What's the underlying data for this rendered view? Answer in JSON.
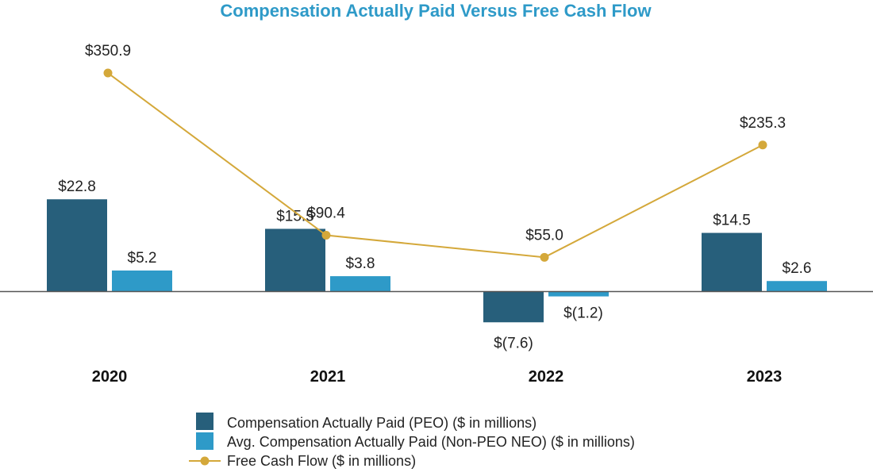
{
  "chart_data": {
    "type": "bar+line",
    "title": "Compensation Actually Paid Versus Free Cash Flow",
    "categories": [
      "2020",
      "2021",
      "2022",
      "2023"
    ],
    "series": [
      {
        "name": "Compensation Actually Paid (PEO) ($ in millions)",
        "kind": "bar",
        "color": "#275f7b",
        "values": [
          22.8,
          15.5,
          -7.6,
          14.5
        ],
        "labels": [
          "$22.8",
          "$15.5",
          "$(7.6)",
          "$14.5"
        ]
      },
      {
        "name": "Avg. Compensation Actually Paid (Non-PEO NEO) ($ in millions)",
        "kind": "bar",
        "color": "#2e9ac8",
        "values": [
          5.2,
          3.8,
          -1.2,
          2.6
        ],
        "labels": [
          "$5.2",
          "$3.8",
          "$(1.2)",
          "$2.6"
        ]
      },
      {
        "name": "Free Cash Flow ($ in millions)",
        "kind": "line",
        "color": "#d4a83a",
        "values": [
          350.9,
          90.4,
          55.0,
          235.3
        ],
        "labels": [
          "$350.9",
          "$90.4",
          "$55.0",
          "$235.3"
        ]
      }
    ],
    "legend_position": "bottom",
    "title_color": "#2e9ac8",
    "axis_color": "#555555"
  }
}
